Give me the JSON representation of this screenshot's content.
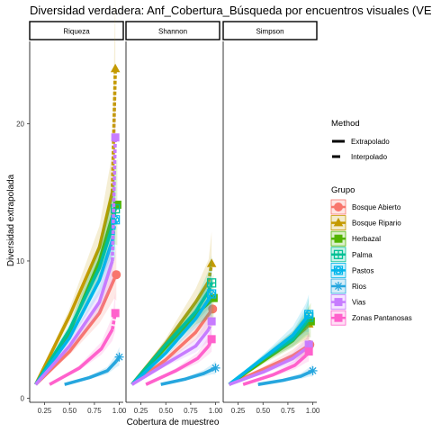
{
  "chart_data": {
    "type": "line",
    "title": "Diversidad verdadera: Anf_Cobertura_Búsqueda por encuentros visuales (VES)",
    "xlabel": "Cobertura de muestreo",
    "ylabel": "Diversidad extrapolada",
    "panels": [
      "Riqueza",
      "Shannon",
      "Simpson"
    ],
    "xlim": [
      0.1,
      1.04
    ],
    "ylim": [
      -0.3,
      26
    ],
    "x_ticks": [
      "0.25",
      "0.50",
      "0.75",
      "1.00"
    ],
    "y_ticks": [
      "0",
      "10",
      "20"
    ],
    "grid": false,
    "legend": {
      "placement": "right",
      "method_title": "Method",
      "method_items": [
        "Extrapolado",
        "Interpolado"
      ],
      "group_title": "Grupo"
    },
    "series": [
      {
        "name": "Bosque Abierto",
        "color": "#F8766D",
        "shape": "circle",
        "Riqueza": [
          [
            0.16,
            1
          ],
          [
            0.5,
            3.4
          ],
          [
            0.8,
            6.2
          ],
          [
            0.95,
            8.7
          ],
          [
            0.97,
            9
          ]
        ],
        "Shannon": [
          [
            0.16,
            1
          ],
          [
            0.5,
            2.8
          ],
          [
            0.8,
            4.8
          ],
          [
            0.95,
            6.3
          ],
          [
            0.97,
            6.5
          ]
        ],
        "Simpson": [
          [
            0.16,
            1
          ],
          [
            0.5,
            2.1
          ],
          [
            0.8,
            3.1
          ],
          [
            0.95,
            3.8
          ],
          [
            0.97,
            3.9
          ]
        ]
      },
      {
        "name": "Bosque Ripario",
        "color": "#C49A00",
        "shape": "triangle",
        "Riqueza": [
          [
            0.16,
            1
          ],
          [
            0.5,
            6
          ],
          [
            0.8,
            11
          ],
          [
            0.93,
            15
          ],
          [
            0.96,
            24
          ]
        ],
        "Shannon": [
          [
            0.16,
            1
          ],
          [
            0.5,
            4
          ],
          [
            0.8,
            7
          ],
          [
            0.93,
            8.5
          ],
          [
            0.96,
            9.8
          ]
        ],
        "Simpson": [
          [
            0.16,
            1
          ],
          [
            0.5,
            2.8
          ],
          [
            0.8,
            4.3
          ],
          [
            0.93,
            5.1
          ],
          [
            0.96,
            5.4
          ]
        ]
      },
      {
        "name": "Herbazal",
        "color": "#53B400",
        "shape": "square",
        "Riqueza": [
          [
            0.16,
            1
          ],
          [
            0.5,
            4.8
          ],
          [
            0.8,
            10
          ],
          [
            0.94,
            13.5
          ],
          [
            0.98,
            14.1
          ]
        ],
        "Shannon": [
          [
            0.16,
            1
          ],
          [
            0.5,
            3.7
          ],
          [
            0.8,
            6.1
          ],
          [
            0.94,
            7
          ],
          [
            0.98,
            7.3
          ]
        ],
        "Simpson": [
          [
            0.16,
            1
          ],
          [
            0.5,
            2.7
          ],
          [
            0.8,
            4.2
          ],
          [
            0.94,
            5.4
          ],
          [
            0.98,
            5.6
          ]
        ]
      },
      {
        "name": "Palma",
        "color": "#00C094",
        "shape": "square-plus",
        "Riqueza": [
          [
            0.16,
            1
          ],
          [
            0.5,
            5
          ],
          [
            0.8,
            9.5
          ],
          [
            0.93,
            12.5
          ],
          [
            0.96,
            13.8
          ]
        ],
        "Shannon": [
          [
            0.16,
            1
          ],
          [
            0.5,
            3.9
          ],
          [
            0.8,
            6.3
          ],
          [
            0.93,
            7.8
          ],
          [
            0.96,
            8.4
          ]
        ],
        "Simpson": [
          [
            0.16,
            1
          ],
          [
            0.5,
            2.9
          ],
          [
            0.8,
            4.3
          ],
          [
            0.93,
            5.5
          ],
          [
            0.96,
            5.9
          ]
        ]
      },
      {
        "name": "Pastos",
        "color": "#00B6EB",
        "shape": "circle-cross",
        "Riqueza": [
          [
            0.16,
            1
          ],
          [
            0.5,
            4.4
          ],
          [
            0.8,
            8.6
          ],
          [
            0.93,
            11.5
          ],
          [
            0.96,
            13
          ]
        ],
        "Shannon": [
          [
            0.16,
            1
          ],
          [
            0.5,
            3.3
          ],
          [
            0.8,
            5.8
          ],
          [
            0.93,
            7.2
          ],
          [
            0.96,
            7.6
          ]
        ],
        "Simpson": [
          [
            0.16,
            1
          ],
          [
            0.5,
            2.9
          ],
          [
            0.8,
            4.6
          ],
          [
            0.93,
            5.8
          ],
          [
            0.96,
            6.1
          ]
        ]
      },
      {
        "name": "Rios",
        "color": "#26A6DE",
        "shape": "asterisk",
        "Riqueza": [
          [
            0.45,
            1
          ],
          [
            0.7,
            1.5
          ],
          [
            0.88,
            2
          ],
          [
            0.97,
            2.7
          ],
          [
            1.0,
            3
          ]
        ],
        "Shannon": [
          [
            0.45,
            1
          ],
          [
            0.7,
            1.4
          ],
          [
            0.88,
            1.8
          ],
          [
            0.97,
            2.1
          ],
          [
            1.0,
            2.2
          ]
        ],
        "Simpson": [
          [
            0.45,
            1
          ],
          [
            0.7,
            1.3
          ],
          [
            0.88,
            1.6
          ],
          [
            0.97,
            1.9
          ],
          [
            1.0,
            2
          ]
        ]
      },
      {
        "name": "Vias",
        "color": "#C77CFF",
        "shape": "square",
        "Riqueza": [
          [
            0.16,
            1
          ],
          [
            0.5,
            3.8
          ],
          [
            0.8,
            7
          ],
          [
            0.93,
            10
          ],
          [
            0.96,
            19
          ]
        ],
        "Shannon": [
          [
            0.16,
            1
          ],
          [
            0.5,
            2.5
          ],
          [
            0.8,
            3.8
          ],
          [
            0.93,
            5
          ],
          [
            0.96,
            5.6
          ]
        ],
        "Simpson": [
          [
            0.16,
            1
          ],
          [
            0.5,
            1.9
          ],
          [
            0.8,
            2.9
          ],
          [
            0.93,
            3.6
          ],
          [
            0.96,
            3.9
          ]
        ]
      },
      {
        "name": "Zonas Pantanosas",
        "color": "#FF61CC",
        "shape": "square",
        "Riqueza": [
          [
            0.3,
            1
          ],
          [
            0.6,
            2.2
          ],
          [
            0.82,
            3.6
          ],
          [
            0.93,
            5
          ],
          [
            0.96,
            6.2
          ]
        ],
        "Shannon": [
          [
            0.3,
            1
          ],
          [
            0.6,
            2
          ],
          [
            0.82,
            2.9
          ],
          [
            0.93,
            3.8
          ],
          [
            0.96,
            4.3
          ]
        ],
        "Simpson": [
          [
            0.3,
            1
          ],
          [
            0.6,
            1.7
          ],
          [
            0.82,
            2.4
          ],
          [
            0.93,
            3.1
          ],
          [
            0.96,
            3.4
          ]
        ]
      }
    ]
  }
}
